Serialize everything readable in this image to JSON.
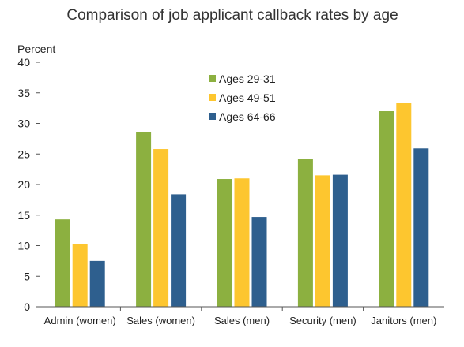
{
  "chart_data": {
    "type": "bar",
    "title": "Comparison of job applicant callback rates by age",
    "ylabel": "Percent",
    "xlabel": "",
    "ylim": [
      0,
      40
    ],
    "yticks": [
      0,
      5,
      10,
      15,
      20,
      25,
      30,
      35,
      40
    ],
    "grid": false,
    "legend_position": "top-center",
    "categories": [
      "Admin (women)",
      "Sales (women)",
      "Sales (men)",
      "Security (men)",
      "Janitors (men)"
    ],
    "series": [
      {
        "name": "Ages 29-31",
        "color": "#8CB040",
        "values": [
          14.3,
          28.6,
          20.9,
          24.2,
          32.0
        ]
      },
      {
        "name": "Ages 49-51",
        "color": "#FDC62F",
        "values": [
          10.3,
          25.8,
          21.0,
          21.5,
          33.4
        ]
      },
      {
        "name": "Ages 64-66",
        "color": "#2E5F8E",
        "values": [
          7.5,
          18.4,
          14.7,
          21.6,
          25.9
        ]
      }
    ]
  }
}
